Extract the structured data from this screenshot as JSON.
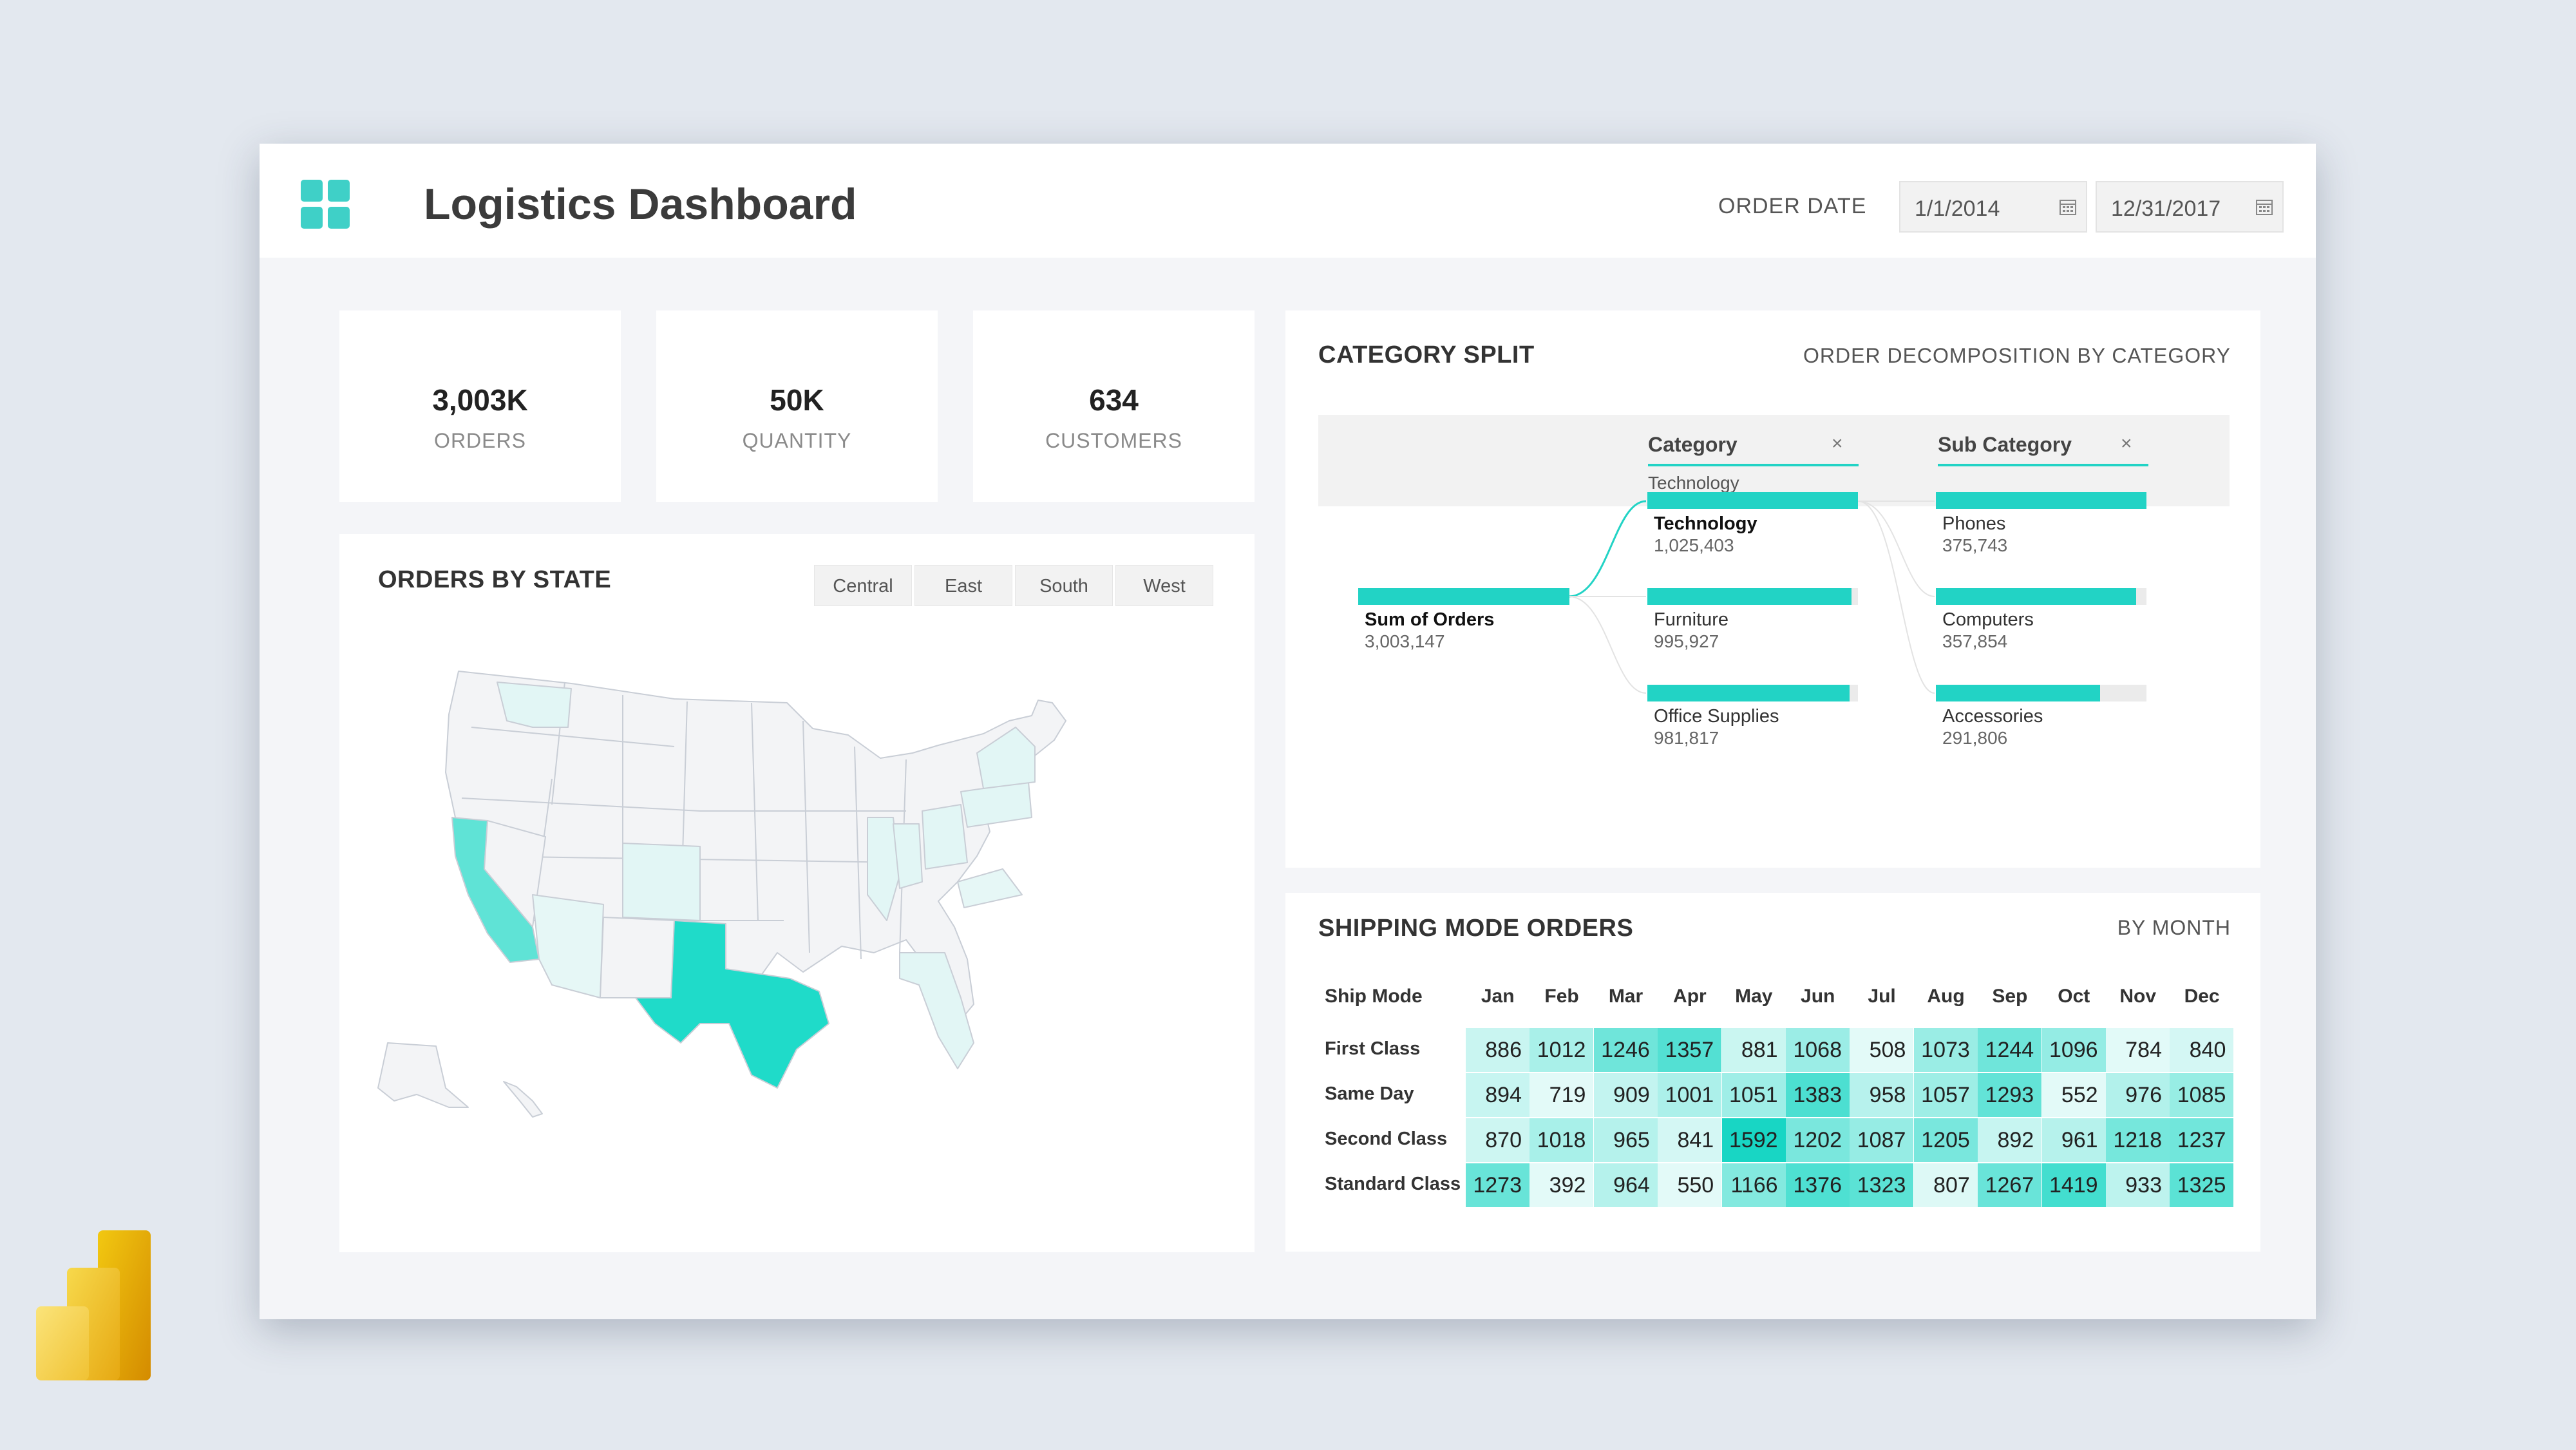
{
  "header": {
    "title": "Logistics Dashboard",
    "order_date_label": "ORDER DATE",
    "date_from": "1/1/2014",
    "date_to": "12/31/2017"
  },
  "kpis": [
    {
      "value": "3,003K",
      "label": "ORDERS"
    },
    {
      "value": "50K",
      "label": "QUANTITY"
    },
    {
      "value": "634",
      "label": "CUSTOMERS"
    }
  ],
  "map": {
    "title": "ORDERS BY STATE",
    "regions": [
      "Central",
      "East",
      "South",
      "West"
    ],
    "highlight_color": "#1fdbc9"
  },
  "category_split": {
    "title": "CATEGORY SPLIT",
    "subtitle": "ORDER DECOMPOSITION BY CATEGORY",
    "levels": [
      {
        "title": "Category",
        "selected": "Technology"
      },
      {
        "title": "Sub Category"
      }
    ],
    "root": {
      "name": "Sum of Orders",
      "value": "3,003,147",
      "fill": 1.0
    },
    "categories": [
      {
        "name": "Technology",
        "value": "1,025,403",
        "fill": 1.0
      },
      {
        "name": "Furniture",
        "value": "995,927",
        "fill": 0.97
      },
      {
        "name": "Office Supplies",
        "value": "981,817",
        "fill": 0.96
      }
    ],
    "subcategories": [
      {
        "name": "Phones",
        "value": "375,743",
        "fill": 1.0
      },
      {
        "name": "Computers",
        "value": "357,854",
        "fill": 0.95
      },
      {
        "name": "Accessories",
        "value": "291,806",
        "fill": 0.78
      }
    ]
  },
  "shipping": {
    "title": "SHIPPING MODE ORDERS",
    "subtitle": "BY MONTH",
    "row_header": "Ship Mode",
    "months": [
      "Jan",
      "Feb",
      "Mar",
      "Apr",
      "May",
      "Jun",
      "Jul",
      "Aug",
      "Sep",
      "Oct",
      "Nov",
      "Dec"
    ],
    "rows": [
      {
        "mode": "First Class",
        "values": [
          886,
          1012,
          1246,
          1357,
          881,
          1068,
          508,
          1073,
          1244,
          1096,
          784,
          840
        ]
      },
      {
        "mode": "Same Day",
        "values": [
          894,
          719,
          909,
          1001,
          1051,
          1383,
          958,
          1057,
          1293,
          552,
          976,
          1085
        ]
      },
      {
        "mode": "Second Class",
        "values": [
          870,
          1018,
          965,
          841,
          1592,
          1202,
          1087,
          1205,
          892,
          961,
          1218,
          1237
        ]
      },
      {
        "mode": "Standard Class",
        "values": [
          1273,
          392,
          964,
          550,
          1166,
          1376,
          1323,
          807,
          1267,
          1419,
          933,
          1325
        ]
      }
    ]
  }
}
